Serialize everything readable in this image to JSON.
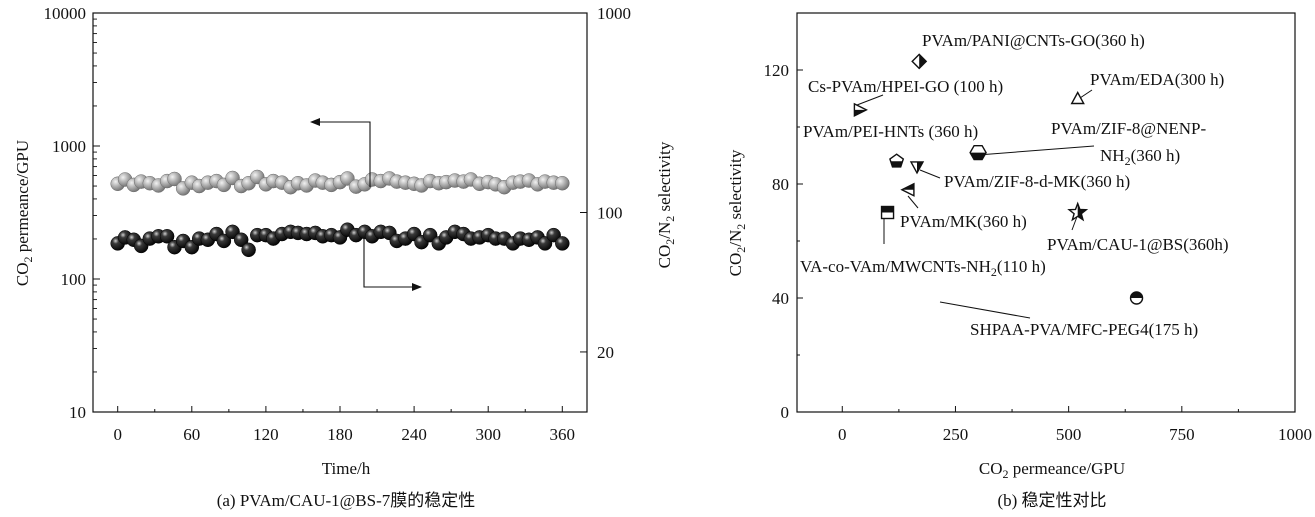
{
  "chart_data": [
    {
      "type": "scatter",
      "panel_caption": "(a) PVAm/CAU-1@BS-7膜的稳定性",
      "xlabel": "Time/h",
      "ylabel_left": "CO2 permeance/GPU",
      "ylabel_right": "CO2/N2 selectivity",
      "x_ticks": [
        "0",
        "60",
        "120",
        "180",
        "240",
        "300",
        "360"
      ],
      "y_left_ticks": [
        "10",
        "100",
        "1000",
        "10000"
      ],
      "y_right_ticks": [
        "20",
        "100",
        "1000"
      ],
      "xlim": [
        -20,
        380
      ],
      "y_left_log_range": [
        10,
        10000
      ],
      "y_right_log_range": [
        10,
        1000
      ],
      "series": [
        {
          "name": "CO2 permeance",
          "axis": "left",
          "color": "#a8a8a8",
          "x": [
            0,
            6,
            13,
            19,
            26,
            33,
            40,
            46,
            53,
            60,
            66,
            73,
            80,
            86,
            93,
            100,
            106,
            113,
            120,
            126,
            133,
            140,
            146,
            153,
            160,
            166,
            173,
            180,
            186,
            193,
            200,
            206,
            213,
            220,
            226,
            233,
            240,
            246,
            253,
            260,
            266,
            273,
            280,
            286,
            293,
            300,
            306,
            313,
            320,
            326,
            333,
            340,
            346,
            353,
            360
          ],
          "values": [
            520,
            560,
            510,
            540,
            525,
            505,
            545,
            565,
            480,
            530,
            500,
            530,
            545,
            510,
            575,
            500,
            525,
            585,
            515,
            545,
            530,
            490,
            525,
            505,
            550,
            530,
            510,
            535,
            570,
            495,
            515,
            560,
            545,
            570,
            540,
            530,
            520,
            505,
            545,
            525,
            535,
            550,
            540,
            560,
            520,
            535,
            515,
            490,
            530,
            540,
            550,
            515,
            540,
            530,
            525
          ]
        },
        {
          "name": "CO2/N2 selectivity",
          "axis": "right",
          "color": "#151515",
          "x": [
            0,
            6,
            13,
            19,
            26,
            33,
            40,
            46,
            53,
            60,
            66,
            73,
            80,
            86,
            93,
            100,
            106,
            113,
            120,
            126,
            133,
            140,
            146,
            153,
            160,
            166,
            173,
            180,
            186,
            193,
            200,
            206,
            213,
            220,
            226,
            233,
            240,
            246,
            253,
            260,
            266,
            273,
            280,
            286,
            293,
            300,
            306,
            313,
            320,
            326,
            333,
            340,
            346,
            353,
            360
          ],
          "values": [
            70,
            75,
            73,
            68,
            74,
            76,
            76,
            67,
            72,
            67,
            74,
            73,
            78,
            72,
            80,
            73,
            65,
            77,
            77,
            74,
            78,
            80,
            79,
            78,
            79,
            76,
            77,
            75,
            82,
            77,
            80,
            76,
            80,
            79,
            72,
            74,
            78,
            71,
            77,
            70,
            75,
            80,
            78,
            74,
            75,
            77,
            74,
            74,
            70,
            74,
            73,
            75,
            70,
            77,
            70
          ]
        }
      ],
      "arrows": [
        {
          "points_to": "left axis",
          "from_series": "CO2 permeance"
        },
        {
          "points_to": "right axis",
          "from_series": "CO2/N2 selectivity"
        }
      ]
    },
    {
      "type": "scatter",
      "panel_caption": "(b) 稳定性对比",
      "xlabel": "CO2 permeance/GPU",
      "ylabel": "CO2/N2 selectivity",
      "x_ticks": [
        "0",
        "250",
        "500",
        "750",
        "1000"
      ],
      "y_ticks": [
        "0",
        "40",
        "80",
        "120"
      ],
      "xlim": [
        -100,
        1000
      ],
      "ylim": [
        0,
        140
      ],
      "points": [
        {
          "label": "PVAm/PANI@CNTs-GO(360 h)",
          "x": 170,
          "y": 123,
          "marker": "diamond-half"
        },
        {
          "label": "Cs-PVAm/HPEI-GO (100 h)",
          "x": 40,
          "y": 106,
          "marker": "triangle-right-half"
        },
        {
          "label": "PVAm/EDA(300 h)",
          "x": 520,
          "y": 110,
          "marker": "triangle-up-open"
        },
        {
          "label": "PVAm/PEI-HNTs (360 h)",
          "x": 120,
          "y": 88,
          "marker": "pentagon-half"
        },
        {
          "label": "PVAm/ZIF-8@NENP-NH2(360 h)",
          "x": 300,
          "y": 91,
          "marker": "hexagon-half"
        },
        {
          "label": "PVAm/ZIF-8-d-MK(360 h)",
          "x": 165,
          "y": 86,
          "marker": "triangle-down-half"
        },
        {
          "label": "PVAm/MK(360 h)",
          "x": 145,
          "y": 78,
          "marker": "triangle-left-half"
        },
        {
          "label": "PVAm/CAU-1@BS(360h)",
          "x": 520,
          "y": 70,
          "marker": "star-half"
        },
        {
          "label": "VA-co-VAm/MWCNTs-NH2(110 h)",
          "x": 100,
          "y": 70,
          "marker": "square-half"
        },
        {
          "label": "SHPAA-PVA/MFC-PEG4(175 h)",
          "x": 650,
          "y": 40,
          "marker": "circle-half"
        }
      ]
    }
  ]
}
